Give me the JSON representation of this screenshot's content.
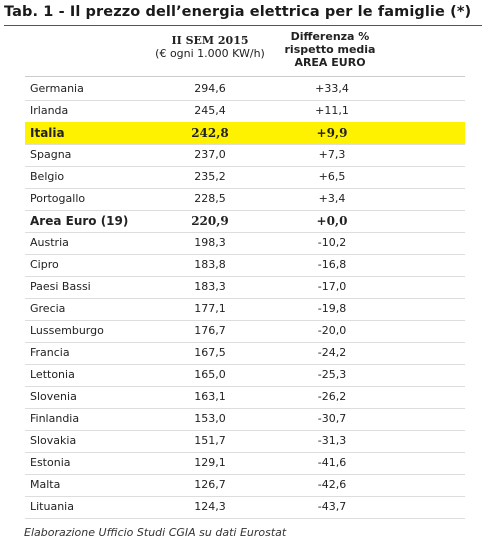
{
  "title": "Tab. 1 - Il prezzo dell’energia elettrica per le famiglie (*)",
  "header": {
    "value": [
      "II SEM 2015",
      "(€ ogni 1.000 KW/h)"
    ],
    "diff": [
      "Differenza %",
      "rispetto media",
      "AREA EURO"
    ]
  },
  "table": {
    "rows": [
      {
        "name": "Germania",
        "value": "294,6",
        "diff": "+33,4"
      },
      {
        "name": "Irlanda",
        "value": "245,4",
        "diff": "+11,1"
      },
      {
        "name": "Italia",
        "value": "242,8",
        "diff": "+9,9",
        "highlight": true,
        "bold": true
      },
      {
        "name": "Spagna",
        "value": "237,0",
        "diff": "+7,3"
      },
      {
        "name": "Belgio",
        "value": "235,2",
        "diff": "+6,5"
      },
      {
        "name": "Portogallo",
        "value": "228,5",
        "diff": "+3,4"
      },
      {
        "name": "Area Euro (19)",
        "value": "220,9",
        "diff": "+0,0",
        "bold": true
      },
      {
        "name": "Austria",
        "value": "198,3",
        "diff": "-10,2"
      },
      {
        "name": "Cipro",
        "value": "183,8",
        "diff": "-16,8"
      },
      {
        "name": "Paesi Bassi",
        "value": "183,3",
        "diff": "-17,0"
      },
      {
        "name": "Grecia",
        "value": "177,1",
        "diff": "-19,8"
      },
      {
        "name": "Lussemburgo",
        "value": "176,7",
        "diff": "-20,0"
      },
      {
        "name": "Francia",
        "value": "167,5",
        "diff": "-24,2"
      },
      {
        "name": "Lettonia",
        "value": "165,0",
        "diff": "-25,3"
      },
      {
        "name": "Slovenia",
        "value": "163,1",
        "diff": "-26,2"
      },
      {
        "name": "Finlandia",
        "value": "153,0",
        "diff": "-30,7"
      },
      {
        "name": "Slovakia",
        "value": "151,7",
        "diff": "-31,3"
      },
      {
        "name": "Estonia",
        "value": "129,1",
        "diff": "-41,6"
      },
      {
        "name": "Malta",
        "value": "126,7",
        "diff": "-42,6"
      },
      {
        "name": "Lituania",
        "value": "124,3",
        "diff": "-43,7"
      }
    ]
  },
  "footnote": "Elaborazione Ufficio Studi CGIA su dati Eurostat"
}
